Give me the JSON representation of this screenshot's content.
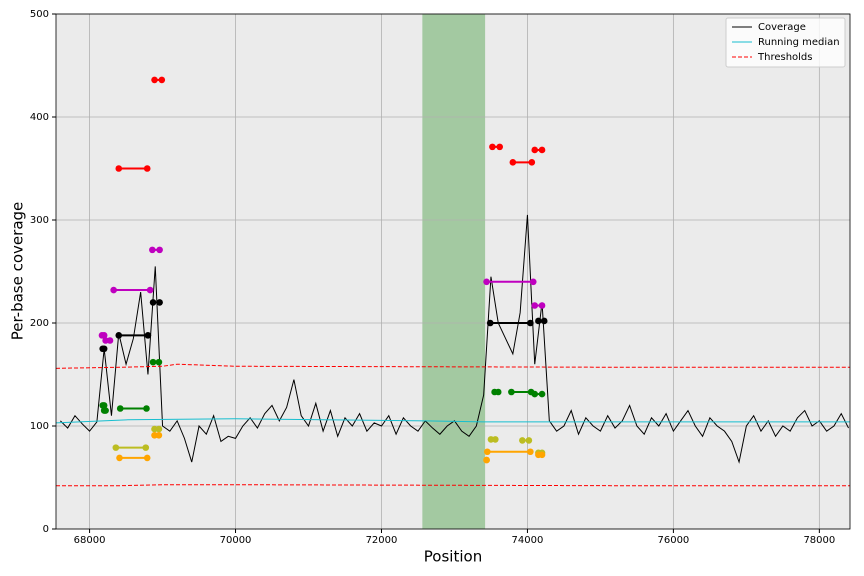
{
  "chart_data": {
    "type": "line",
    "xlabel": "Position",
    "ylabel": "Per-base coverage",
    "xlim": [
      67540,
      78420
    ],
    "ylim": [
      0,
      500
    ],
    "xticks": [
      68000,
      70000,
      72000,
      74000,
      76000,
      78000
    ],
    "yticks": [
      0,
      100,
      200,
      300,
      400,
      500
    ],
    "grid": true,
    "legend": "upper right",
    "span": {
      "x": [
        72560,
        73420
      ],
      "color": "#a3c9a1"
    },
    "series": [
      {
        "name": "Coverage",
        "color": "#000000",
        "style": "solid",
        "x": [
          67600,
          67700,
          67800,
          67900,
          68000,
          68100,
          68200,
          68300,
          68400,
          68500,
          68600,
          68700,
          68800,
          68900,
          69000,
          69100,
          69200,
          69300,
          69400,
          69500,
          69600,
          69700,
          69800,
          69900,
          70000,
          70100,
          70200,
          70300,
          70400,
          70500,
          70600,
          70700,
          70800,
          70900,
          71000,
          71100,
          71200,
          71300,
          71400,
          71500,
          71600,
          71700,
          71800,
          71900,
          72000,
          72100,
          72200,
          72300,
          72400,
          72500,
          72600,
          72700,
          72800,
          72900,
          73000,
          73100,
          73200,
          73300,
          73400,
          73500,
          73600,
          73700,
          73800,
          73900,
          74000,
          74100,
          74200,
          74300,
          74400,
          74500,
          74600,
          74700,
          74800,
          74900,
          75000,
          75100,
          75200,
          75300,
          75400,
          75500,
          75600,
          75700,
          75800,
          75900,
          76000,
          76100,
          76200,
          76300,
          76400,
          76500,
          76600,
          76700,
          76800,
          76900,
          77000,
          77100,
          77200,
          77300,
          77400,
          77500,
          77600,
          77700,
          77800,
          77900,
          78000,
          78100,
          78200,
          78300,
          78400
        ],
        "values": [
          105,
          98,
          110,
          102,
          95,
          104,
          175,
          110,
          190,
          160,
          185,
          230,
          150,
          255,
          100,
          95,
          105,
          88,
          65,
          100,
          92,
          110,
          85,
          90,
          88,
          100,
          108,
          98,
          112,
          120,
          105,
          118,
          145,
          110,
          100,
          122,
          95,
          115,
          90,
          108,
          100,
          112,
          95,
          103,
          100,
          110,
          92,
          108,
          100,
          95,
          105,
          98,
          92,
          100,
          105,
          95,
          90,
          100,
          130,
          245,
          200,
          185,
          170,
          210,
          305,
          160,
          220,
          105,
          95,
          100,
          115,
          92,
          108,
          100,
          95,
          110,
          98,
          105,
          120,
          100,
          92,
          108,
          100,
          112,
          95,
          105,
          115,
          100,
          90,
          108,
          100,
          95,
          85,
          65,
          100,
          110,
          95,
          105,
          90,
          100,
          95,
          108,
          115,
          100,
          105,
          95,
          100,
          112,
          98
        ]
      },
      {
        "name": "Running median",
        "color": "#17becf",
        "style": "solid",
        "x": [
          67540,
          68500,
          70000,
          72600,
          73400,
          78420
        ],
        "values": [
          103,
          106,
          107,
          105,
          104,
          104
        ]
      },
      {
        "name": "Thresholds",
        "color": "#ff0000",
        "style": "dashed",
        "x": [
          67540,
          68400,
          69000,
          69200,
          70000,
          75400,
          78420
        ],
        "values": [
          156,
          157,
          158,
          160,
          158,
          157,
          157
        ],
        "lower_values": [
          42,
          42,
          43,
          43,
          43,
          42,
          42
        ]
      }
    ],
    "segments": [
      {
        "color": "#ff0000",
        "x": [
          68890,
          68990
        ],
        "y": 436
      },
      {
        "color": "#ff0000",
        "x": [
          68400,
          68790
        ],
        "y": 350
      },
      {
        "color": "#ff0000",
        "x": [
          73520,
          73620
        ],
        "y": 371
      },
      {
        "color": "#ff0000",
        "x": [
          73800,
          74060
        ],
        "y": 356
      },
      {
        "color": "#ff0000",
        "x": [
          74100,
          74200
        ],
        "y": 368
      },
      {
        "color": "#bf00bf",
        "x": [
          68170,
          68200
        ],
        "y": 188
      },
      {
        "color": "#bf00bf",
        "x": [
          68220,
          68280
        ],
        "y": 183
      },
      {
        "color": "#bf00bf",
        "x": [
          68860,
          68960
        ],
        "y": 271
      },
      {
        "color": "#bf00bf",
        "x": [
          68330,
          68830
        ],
        "y": 232
      },
      {
        "color": "#bf00bf",
        "x": [
          73440,
          74080
        ],
        "y": 240
      },
      {
        "color": "#bf00bf",
        "x": [
          74100,
          74200
        ],
        "y": 217
      },
      {
        "color": "#000000",
        "x": [
          68180,
          68200
        ],
        "y": 175
      },
      {
        "color": "#000000",
        "x": [
          68400,
          68800
        ],
        "y": 188
      },
      {
        "color": "#000000",
        "x": [
          68870,
          68960
        ],
        "y": 220
      },
      {
        "color": "#000000",
        "x": [
          73490,
          74040
        ],
        "y": 200
      },
      {
        "color": "#000000",
        "x": [
          74150,
          74230
        ],
        "y": 202
      },
      {
        "color": "#008000",
        "x": [
          68180,
          68200
        ],
        "y": 120
      },
      {
        "color": "#008000",
        "x": [
          68200,
          68220
        ],
        "y": 115
      },
      {
        "color": "#008000",
        "x": [
          68420,
          68780
        ],
        "y": 117
      },
      {
        "color": "#008000",
        "x": [
          68870,
          68950
        ],
        "y": 162
      },
      {
        "color": "#008000",
        "x": [
          73550,
          73600
        ],
        "y": 133
      },
      {
        "color": "#008000",
        "x": [
          73780,
          74050
        ],
        "y": 133
      },
      {
        "color": "#008000",
        "x": [
          74100,
          74200
        ],
        "y": 131
      },
      {
        "color": "#bcbd22",
        "x": [
          68360,
          68770
        ],
        "y": 79
      },
      {
        "color": "#bcbd22",
        "x": [
          68890,
          68950
        ],
        "y": 97
      },
      {
        "color": "#bcbd22",
        "x": [
          73500,
          73560
        ],
        "y": 87
      },
      {
        "color": "#bcbd22",
        "x": [
          73930,
          74020
        ],
        "y": 86
      },
      {
        "color": "#bcbd22",
        "x": [
          74150,
          74200
        ],
        "y": 74
      },
      {
        "color": "#ffa500",
        "x": [
          68410,
          68790
        ],
        "y": 69
      },
      {
        "color": "#ffa500",
        "x": [
          68890,
          68950
        ],
        "y": 91
      },
      {
        "color": "#ffa500",
        "x": [
          73450,
          74040
        ],
        "y": 75
      },
      {
        "color": "#ffa500",
        "x": [
          73440,
          73440
        ],
        "y": 67
      },
      {
        "color": "#ffa500",
        "x": [
          74150,
          74200
        ],
        "y": 72
      }
    ]
  }
}
